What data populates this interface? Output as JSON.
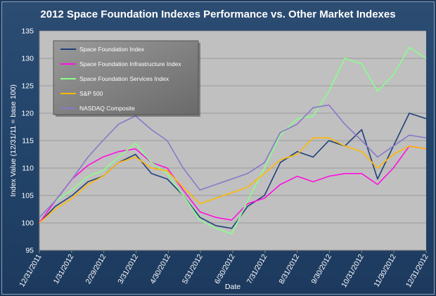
{
  "chart_data": {
    "type": "line",
    "title": "2012 Space Foundation Indexes Performance vs. Other Market Indexes",
    "xlabel": "Date",
    "ylabel": "Index Value (12/31/11 = base 100)",
    "ylim": [
      95,
      135
    ],
    "yticks": [
      95,
      100,
      105,
      110,
      115,
      120,
      125,
      130,
      135
    ],
    "xlim": [
      "2011-12-31",
      "2012-12-31"
    ],
    "xtick_labels": [
      "12/31/2011",
      "1/31/2012",
      "2/29/2012",
      "3/31/2012",
      "4/30/2012",
      "5/31/2012",
      "6/30/2012",
      "7/31/2012",
      "8/31/2012",
      "9/30/2012",
      "10/31/2012",
      "11/30/2012",
      "12/31/2012"
    ],
    "grid": true,
    "legend_position": "top-left",
    "series": [
      {
        "name": "Space Foundation Index",
        "color": "#1f3f7a",
        "x": [
          "2011-12-31",
          "2012-01-15",
          "2012-01-31",
          "2012-02-15",
          "2012-02-29",
          "2012-03-15",
          "2012-03-31",
          "2012-04-15",
          "2012-04-30",
          "2012-05-15",
          "2012-05-31",
          "2012-06-15",
          "2012-06-30",
          "2012-07-15",
          "2012-07-31",
          "2012-08-15",
          "2012-08-31",
          "2012-09-15",
          "2012-09-30",
          "2012-10-15",
          "2012-10-31",
          "2012-11-15",
          "2012-11-30",
          "2012-12-15",
          "2012-12-31"
        ],
        "values": [
          100,
          103,
          105,
          107.5,
          108.5,
          111,
          112.5,
          109,
          108,
          105,
          101,
          99.5,
          99,
          103,
          105,
          111,
          113,
          112,
          115,
          114,
          117,
          108,
          114,
          120,
          119
        ]
      },
      {
        "name": "Space Foundation Infrastructure Index",
        "color": "#ff10e0",
        "x": [
          "2011-12-31",
          "2012-01-15",
          "2012-01-31",
          "2012-02-15",
          "2012-02-29",
          "2012-03-15",
          "2012-03-31",
          "2012-04-15",
          "2012-04-30",
          "2012-05-15",
          "2012-05-31",
          "2012-06-15",
          "2012-06-30",
          "2012-07-15",
          "2012-07-31",
          "2012-08-15",
          "2012-08-31",
          "2012-09-15",
          "2012-09-30",
          "2012-10-15",
          "2012-10-31",
          "2012-11-15",
          "2012-11-30",
          "2012-12-15",
          "2012-12-31"
        ],
        "values": [
          100,
          104,
          108,
          110.5,
          112,
          113,
          113.5,
          111,
          110,
          106,
          102,
          101,
          100.5,
          103.5,
          104.5,
          107,
          108.5,
          107.5,
          108.5,
          109,
          109,
          107,
          110,
          114,
          113.5
        ]
      },
      {
        "name": "Space Foundation Services Index",
        "color": "#8aff8a",
        "x": [
          "2011-12-31",
          "2012-01-15",
          "2012-01-31",
          "2012-02-15",
          "2012-02-29",
          "2012-03-15",
          "2012-03-31",
          "2012-04-15",
          "2012-04-30",
          "2012-05-15",
          "2012-05-31",
          "2012-06-15",
          "2012-06-30",
          "2012-07-15",
          "2012-07-31",
          "2012-08-15",
          "2012-08-31",
          "2012-09-15",
          "2012-09-30",
          "2012-10-15",
          "2012-10-31",
          "2012-11-15",
          "2012-11-30",
          "2012-12-15",
          "2012-12-31"
        ],
        "values": [
          101,
          104,
          106,
          108.5,
          109.5,
          112,
          114.5,
          111,
          109,
          105,
          100.5,
          99,
          98,
          104,
          110,
          116,
          119,
          119.5,
          124,
          130,
          129,
          124,
          127,
          132,
          130
        ]
      },
      {
        "name": "S&P 500",
        "color": "#ffb800",
        "x": [
          "2011-12-31",
          "2012-01-15",
          "2012-01-31",
          "2012-02-15",
          "2012-02-29",
          "2012-03-15",
          "2012-03-31",
          "2012-04-15",
          "2012-04-30",
          "2012-05-15",
          "2012-05-31",
          "2012-06-15",
          "2012-06-30",
          "2012-07-15",
          "2012-07-31",
          "2012-08-15",
          "2012-08-31",
          "2012-09-15",
          "2012-09-30",
          "2012-10-15",
          "2012-10-31",
          "2012-11-15",
          "2012-11-30",
          "2012-12-15",
          "2012-12-31"
        ],
        "values": [
          100,
          102.5,
          104.5,
          107,
          108.5,
          111,
          112,
          110,
          109.5,
          106.5,
          103.5,
          104.5,
          105.5,
          106.5,
          109,
          111.5,
          112.5,
          115.5,
          115.5,
          114,
          113,
          110,
          112.5,
          114,
          113.5
        ]
      },
      {
        "name": "NASDAQ Composite",
        "color": "#8a78c8",
        "x": [
          "2011-12-31",
          "2012-01-15",
          "2012-01-31",
          "2012-02-15",
          "2012-02-29",
          "2012-03-15",
          "2012-03-31",
          "2012-04-15",
          "2012-04-30",
          "2012-05-15",
          "2012-05-31",
          "2012-06-15",
          "2012-06-30",
          "2012-07-15",
          "2012-07-31",
          "2012-08-15",
          "2012-08-31",
          "2012-09-15",
          "2012-09-30",
          "2012-10-15",
          "2012-10-31",
          "2012-11-15",
          "2012-11-30",
          "2012-12-15",
          "2012-12-31"
        ],
        "values": [
          101,
          104,
          108,
          112,
          115,
          118,
          119.5,
          117,
          115,
          110,
          106,
          107,
          108,
          109,
          111,
          116.5,
          118,
          121,
          121.5,
          118,
          115,
          112,
          114,
          116,
          115.5
        ]
      }
    ]
  }
}
